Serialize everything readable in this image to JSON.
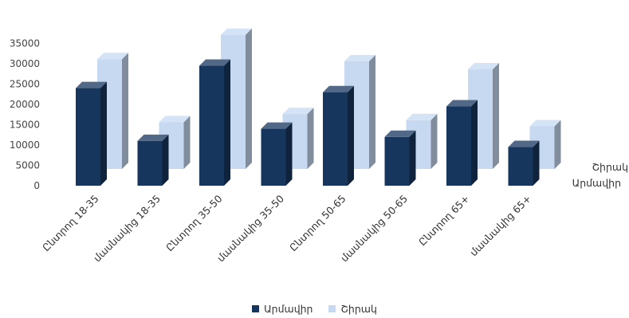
{
  "chart_data": {
    "type": "bar",
    "categories": [
      "Ընտրող 18-35",
      "մասնակից 18-35",
      "Ընտրող 35-50",
      "մասնակից 35-50",
      "Ընտրող 50-65",
      "մասնակից 50-65",
      "Ընտրող 65+",
      "մասնակից 65+"
    ],
    "series": [
      {
        "name": "Արմավիր",
        "values": [
          24000,
          11000,
          29500,
          14000,
          23000,
          12000,
          19500,
          9500
        ],
        "color": "#17365d"
      },
      {
        "name": "Շիրակ",
        "values": [
          27000,
          11500,
          33000,
          13500,
          26500,
          12000,
          24500,
          10500
        ],
        "color": "#c6d9f1"
      }
    ],
    "depth_labels": [
      "Շիրակ",
      "Արմավիր"
    ],
    "y_ticks": [
      "0",
      "5000",
      "10000",
      "15000",
      "20000",
      "25000",
      "30000",
      "35000"
    ],
    "ylim": [
      0,
      35000
    ],
    "legend_position": "bottom",
    "grid": false,
    "style": "3d-column"
  }
}
